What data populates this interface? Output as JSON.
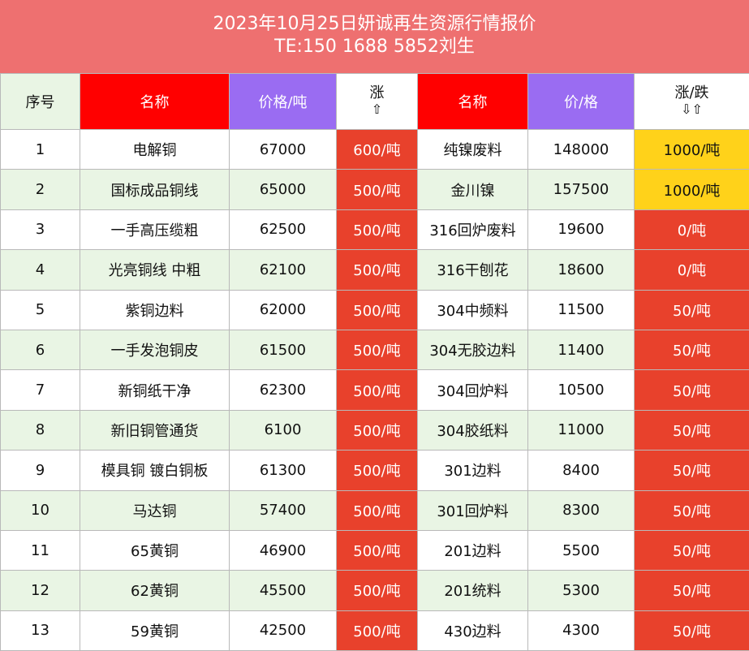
{
  "header": {
    "title": "2023年10月25日妍诚再生资源行情报价",
    "phone": "TE:150 1688 5852刘生"
  },
  "columns": {
    "index": "序号",
    "name_left": "名称",
    "price_left": "价格/吨",
    "change_left": "涨",
    "change_left_arrow": "⇧",
    "name_right": "名称",
    "price_right": "价/格",
    "change_right": "涨/跌",
    "change_right_arrow": "⇩⇧"
  },
  "rows": [
    {
      "no": "1",
      "name": "电解铜",
      "price": "67000",
      "change": "600/吨",
      "name2": "纯镍废料",
      "price2": "148000",
      "change2": "1000/吨"
    },
    {
      "no": "2",
      "name": "国标成品铜线",
      "price": "65000",
      "change": "500/吨",
      "name2": "金川镍",
      "price2": "157500",
      "change2": "1000/吨"
    },
    {
      "no": "3",
      "name": "一手高压缆粗",
      "price": "62500",
      "change": "500/吨",
      "name2": "316回炉废料",
      "price2": "19600",
      "change2": "0/吨"
    },
    {
      "no": "4",
      "name": "光亮铜线 中粗",
      "price": "62100",
      "change": "500/吨",
      "name2": "316干刨花",
      "price2": "18600",
      "change2": "0/吨"
    },
    {
      "no": "5",
      "name": "紫铜边料",
      "price": "62000",
      "change": "500/吨",
      "name2": "304中频料",
      "price2": "11500",
      "change2": "50/吨"
    },
    {
      "no": "6",
      "name": "一手发泡铜皮",
      "price": "61500",
      "change": "500/吨",
      "name2": "304无胶边料",
      "price2": "11400",
      "change2": "50/吨"
    },
    {
      "no": "7",
      "name": "新铜纸干净",
      "price": "62300",
      "change": "500/吨",
      "name2": "304回炉料",
      "price2": "10500",
      "change2": "50/吨"
    },
    {
      "no": "8",
      "name": "新旧铜管通货",
      "price": "6100",
      "change": "500/吨",
      "name2": "304胶纸料",
      "price2": "11000",
      "change2": "50/吨"
    },
    {
      "no": "9",
      "name": "模具铜 镀白铜板",
      "price": "61300",
      "change": "500/吨",
      "name2": "301边料",
      "price2": "8400",
      "change2": "50/吨"
    },
    {
      "no": "10",
      "name": "马达铜",
      "price": "57400",
      "change": "500/吨",
      "name2": "301回炉料",
      "price2": "8300",
      "change2": "50/吨"
    },
    {
      "no": "11",
      "name": "65黄铜",
      "price": "46900",
      "change": "500/吨",
      "name2": "201边料",
      "price2": "5500",
      "change2": "50/吨"
    },
    {
      "no": "12",
      "name": "62黄铜",
      "price": "45500",
      "change": "500/吨",
      "name2": "201统料",
      "price2": "5300",
      "change2": "50/吨"
    },
    {
      "no": "13",
      "name": "59黄铜",
      "price": "42500",
      "change": "500/吨",
      "name2": "430边料",
      "price2": "4300",
      "change2": "50/吨"
    }
  ],
  "colors": {
    "header_bg": "#ee7070",
    "name_header": "#ff0000",
    "price_header": "#9a6cf2",
    "up_cell": "#e8412c",
    "yellow_cell": "#ffd21a",
    "row_green": "#e9f5e4"
  }
}
